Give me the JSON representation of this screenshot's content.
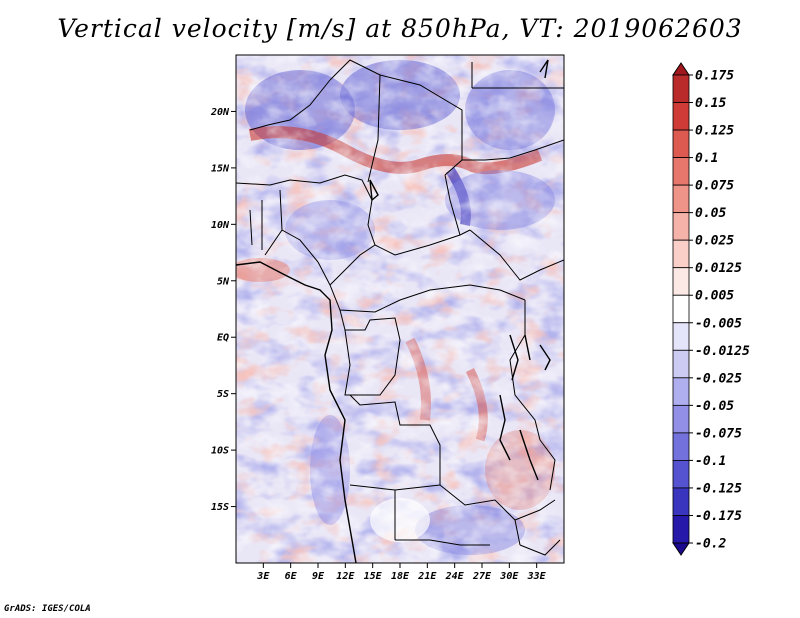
{
  "title": "Vertical velocity [m/s] at 850hPa, VT: 2019062603",
  "credit": "GrADS: IGES/COLA",
  "map": {
    "lon_range": [
      0,
      36
    ],
    "lat_range": [
      -20,
      25
    ],
    "lat_ticks": [
      {
        "value": 20,
        "label": "20N"
      },
      {
        "value": 15,
        "label": "15N"
      },
      {
        "value": 10,
        "label": "10N"
      },
      {
        "value": 5,
        "label": "5N"
      },
      {
        "value": 0,
        "label": "EQ"
      },
      {
        "value": -5,
        "label": "5S"
      },
      {
        "value": -10,
        "label": "10S"
      },
      {
        "value": -15,
        "label": "15S"
      }
    ],
    "lon_ticks": [
      {
        "value": 3,
        "label": "3E"
      },
      {
        "value": 6,
        "label": "6E"
      },
      {
        "value": 9,
        "label": "9E"
      },
      {
        "value": 12,
        "label": "12E"
      },
      {
        "value": 15,
        "label": "15E"
      },
      {
        "value": 18,
        "label": "18E"
      },
      {
        "value": 21,
        "label": "21E"
      },
      {
        "value": 24,
        "label": "24E"
      },
      {
        "value": 27,
        "label": "27E"
      },
      {
        "value": 30,
        "label": "30E"
      },
      {
        "value": 33,
        "label": "33E"
      }
    ]
  },
  "colorbar": {
    "labels": [
      "0.175",
      "0.15",
      "0.125",
      "0.1",
      "0.075",
      "0.05",
      "0.025",
      "0.0125",
      "0.005",
      "-0.005",
      "-0.0125",
      "-0.025",
      "-0.05",
      "-0.075",
      "-0.1",
      "-0.125",
      "-0.175",
      "-0.2"
    ],
    "colors": [
      "#a1171c",
      "#b92b2b",
      "#cf3c38",
      "#dd5a50",
      "#e7766c",
      "#ef9488",
      "#f4b2a8",
      "#f9cfc8",
      "#fce8e4",
      "#ffffff",
      "#e4e4fa",
      "#cbcbf4",
      "#afaeee",
      "#9190e6",
      "#7371dc",
      "#5553cf",
      "#3a35bf",
      "#2618a8",
      "#1c0a8e"
    ]
  }
}
